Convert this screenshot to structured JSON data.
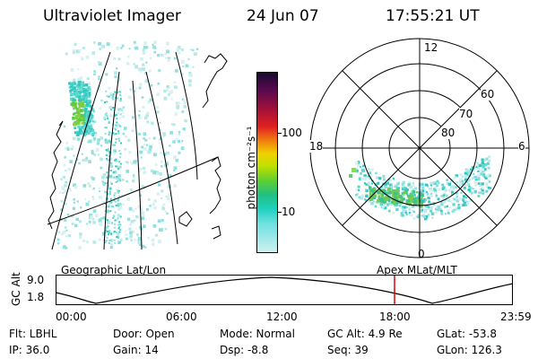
{
  "header": {
    "instrument": "Ultraviolet Imager",
    "date": "24 Jun 07",
    "time": "17:55:21 UT"
  },
  "colorbar": {
    "unit_label": "photon cm⁻²s⁻¹",
    "ticks": [
      "100",
      "10"
    ]
  },
  "polar_plot": {
    "mlt_labels": [
      "12",
      "18",
      "6",
      "0"
    ],
    "lat_labels": [
      "60",
      "70",
      "80"
    ]
  },
  "timeline": {
    "left_label": "Geographic Lat/Lon",
    "right_label": "Apex MLat/MLT",
    "y_axis_label": "GC Alt",
    "y_max": "9.0",
    "y_min": "1.8",
    "x_ticks": [
      "00:00",
      "06:00",
      "12:00",
      "18:00",
      "23:59"
    ],
    "marker_color": "#dd0000"
  },
  "info": {
    "flt": "Flt: LBHL",
    "door": "Door: Open",
    "mode": "Mode: Normal",
    "gc_alt": "GC Alt: 4.9 Re",
    "glat": "GLat: -53.8",
    "ip": "IP: 36.0",
    "gain": "Gain: 14",
    "dsp": "Dsp:    -8.8",
    "seq": "Seq: 39",
    "glon": "GLon: 126.3"
  }
}
